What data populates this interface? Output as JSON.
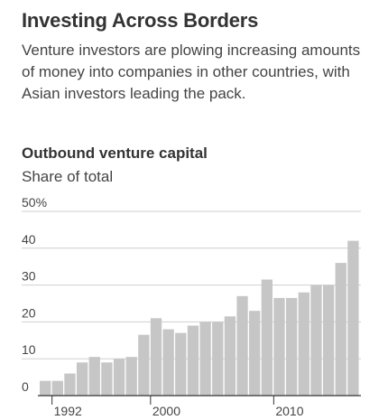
{
  "headline": "Investing Across Borders",
  "dek": "Venture investors are plowing increasing amounts of money into companies in other countries, with Asian investors leading the pack.",
  "chart_data": {
    "type": "bar",
    "title": "Outbound venture capital",
    "subtitle": "Share of total",
    "x": [
      1991,
      1992,
      1993,
      1994,
      1995,
      1996,
      1997,
      1998,
      1999,
      2000,
      2001,
      2002,
      2003,
      2004,
      2005,
      2006,
      2007,
      2008,
      2009,
      2010,
      2011,
      2012,
      2013,
      2014,
      2015,
      2016
    ],
    "values": [
      4,
      4,
      6,
      9,
      10.5,
      9,
      10,
      10.5,
      16.5,
      21,
      18,
      17,
      19,
      20,
      20,
      21.5,
      27,
      23,
      31.5,
      26.5,
      26.5,
      28,
      30,
      30,
      36,
      42
    ],
    "y_ticks": [
      "50%",
      "40",
      "30",
      "20",
      "10",
      "0"
    ],
    "y_tick_values": [
      50,
      40,
      30,
      20,
      10,
      0
    ],
    "x_tick_labels": [
      "1992",
      "2000",
      "2010"
    ],
    "x_tick_years": [
      1992,
      2000,
      2010
    ],
    "ylim": [
      0,
      50
    ],
    "grid": true,
    "colors": {
      "bar": "#c6c6c6",
      "grid": "#cfcfcf",
      "axis": "#333333"
    }
  }
}
